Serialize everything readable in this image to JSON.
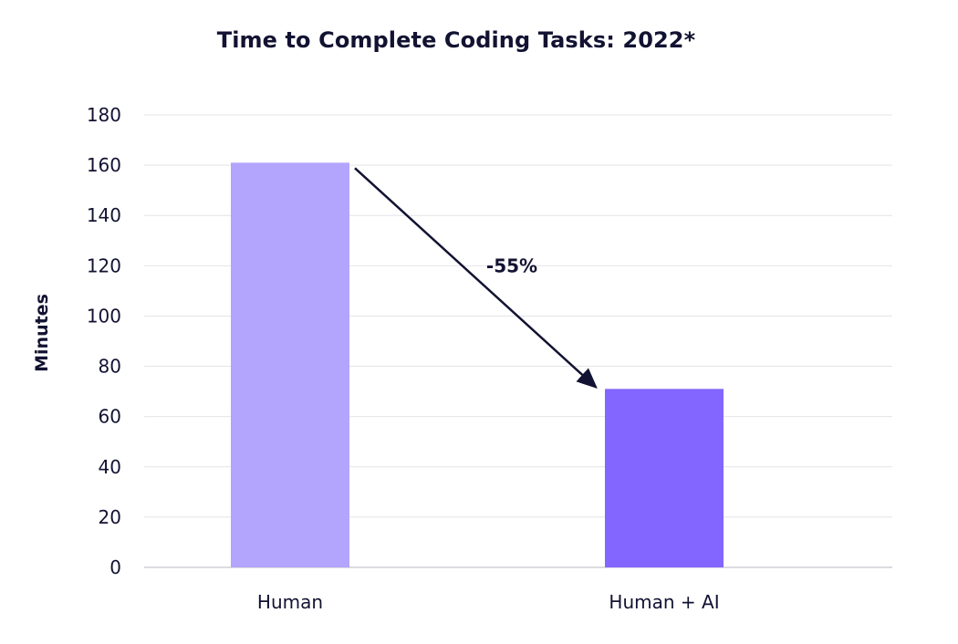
{
  "chart_data": {
    "type": "bar",
    "title": "Time to Complete Coding Tasks: 2022*",
    "xlabel": "",
    "ylabel": "Minutes",
    "categories": [
      "Human",
      "Human + AI"
    ],
    "values": [
      161,
      71
    ],
    "ylim": [
      0,
      180
    ],
    "yticks": [
      0,
      20,
      40,
      60,
      80,
      100,
      120,
      140,
      160,
      180
    ],
    "grid": true,
    "legend": "none",
    "colors": [
      "#b3a4fd",
      "#8266ff"
    ],
    "annotation": {
      "text": "-55%",
      "from_category": "Human",
      "to_category": "Human + AI"
    }
  }
}
